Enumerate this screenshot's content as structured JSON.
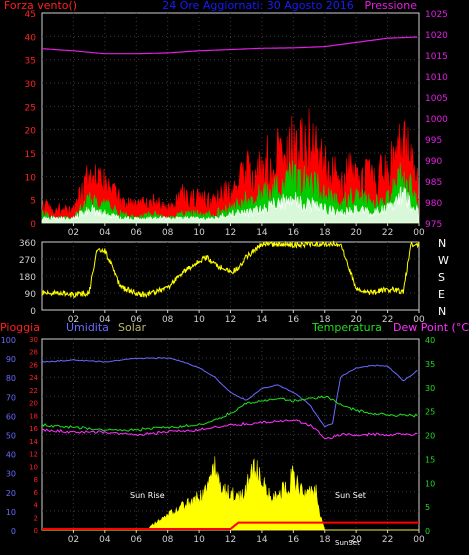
{
  "chart_data": [
    {
      "type": "area",
      "title": "24 Ore Aggiornati: 30 Agosto 2016",
      "left_label": "Forza vento()",
      "right_label": "Pressione",
      "colors": {
        "title": "#1a1aff",
        "left": "#ff2020",
        "right": "#e020e0",
        "gust": "#ff0000",
        "speed": "#00cc00",
        "avg": "#ffffff",
        "pressure": "#e020e0",
        "grid": "#3a3a3a"
      },
      "yleft": [
        0,
        45
      ],
      "yleft_ticks": [
        "0",
        "5",
        "10",
        "15",
        "20",
        "25",
        "30",
        "35",
        "40",
        "45"
      ],
      "yright": [
        975,
        1025
      ],
      "yright_ticks": [
        "975",
        "980",
        "985",
        "990",
        "995",
        "1000",
        "1005",
        "1010",
        "1015",
        "1020",
        "1025"
      ],
      "x_ticks": [
        "02",
        "04",
        "06",
        "08",
        "10",
        "12",
        "14",
        "16",
        "18",
        "20",
        "22",
        "00"
      ],
      "series": [
        {
          "key": "pressure",
          "axis": "right",
          "hours": [
            0,
            2,
            4,
            6,
            8,
            10,
            12,
            14,
            16,
            18,
            20,
            22,
            24
          ],
          "values": [
            1016.5,
            1016,
            1015.3,
            1015.3,
            1015.5,
            1016,
            1016.3,
            1016.6,
            1016.7,
            1017,
            1018,
            1019,
            1019.3
          ]
        },
        {
          "key": "gust",
          "hours": [
            0,
            1,
            2,
            3,
            4,
            5,
            6,
            7,
            8,
            9,
            10,
            11,
            12,
            13,
            14,
            15,
            16,
            17,
            18,
            19,
            20,
            21,
            22,
            23,
            24
          ],
          "values": [
            4,
            3,
            3,
            10,
            8,
            5,
            4,
            5,
            3,
            6,
            5,
            5,
            7,
            11,
            12,
            15,
            16,
            17,
            12,
            9,
            12,
            9,
            11,
            17,
            8
          ]
        },
        {
          "key": "speed",
          "hours": [
            0,
            1,
            2,
            3,
            4,
            5,
            6,
            7,
            8,
            9,
            10,
            11,
            12,
            13,
            14,
            15,
            16,
            17,
            18,
            19,
            20,
            21,
            22,
            23,
            24
          ],
          "values": [
            2,
            1,
            1,
            5,
            4,
            2,
            1,
            2,
            1,
            2,
            2,
            2,
            3,
            5,
            6,
            8,
            10,
            9,
            6,
            4,
            6,
            4,
            5,
            10,
            4
          ]
        },
        {
          "key": "avg",
          "hours": [
            0,
            1,
            2,
            3,
            4,
            5,
            6,
            7,
            8,
            9,
            10,
            11,
            12,
            13,
            14,
            15,
            16,
            17,
            18,
            19,
            20,
            21,
            22,
            23,
            24
          ],
          "values": [
            1,
            1,
            1,
            3,
            2,
            1,
            1,
            1,
            1,
            1,
            1,
            1,
            2,
            2,
            3,
            4,
            5,
            4,
            3,
            2,
            3,
            2,
            3,
            6,
            2
          ]
        }
      ]
    },
    {
      "type": "scatter",
      "right_labels": [
        "N",
        "W",
        "S",
        "E",
        "N"
      ],
      "colors": {
        "dir": "#ffff00"
      },
      "y": [
        0,
        360
      ],
      "y_ticks": [
        "0",
        "90",
        "180",
        "270",
        "360"
      ],
      "x_ticks": [
        "02",
        "04",
        "06",
        "08",
        "10",
        "12",
        "14",
        "16",
        "18",
        "20",
        "22",
        "00"
      ],
      "series": [
        {
          "key": "direction",
          "hours": [
            0,
            1,
            2,
            3,
            3.5,
            4,
            5,
            6,
            6.5,
            7,
            8,
            9,
            10,
            10.5,
            11,
            12,
            12.5,
            13,
            14,
            15,
            16,
            17,
            18,
            19,
            19.5,
            20,
            21,
            22,
            23,
            23.5,
            24
          ],
          "values": [
            90,
            90,
            80,
            90,
            310,
            320,
            120,
            90,
            80,
            90,
            120,
            200,
            260,
            280,
            240,
            200,
            220,
            280,
            350,
            350,
            345,
            350,
            350,
            350,
            230,
            110,
            90,
            110,
            100,
            350,
            350
          ]
        }
      ]
    },
    {
      "type": "line",
      "left_labels": [
        "Pioggia",
        "Umidita",
        "Solar"
      ],
      "right_labels": [
        "Temperatura",
        "Dew Point (°C)"
      ],
      "annotations": [
        "Sun Rise",
        "Sun Set",
        "SunSet"
      ],
      "colors": {
        "rain": "#ff2020",
        "hum": "#6a6aff",
        "solar": "#b8b870",
        "temp": "#20dd20",
        "dew": "#ff30ff",
        "sol": "#ffff00",
        "rainline": "#ff0000",
        "grid": "#3a3a3a"
      },
      "rain_ticks": [
        "0",
        "2",
        "4",
        "6",
        "8",
        "10",
        "12",
        "14",
        "16",
        "18",
        "20",
        "22",
        "24",
        "26",
        "28",
        "30"
      ],
      "hum_ticks": [
        "0",
        "10",
        "20",
        "30",
        "40",
        "50",
        "60",
        "70",
        "80",
        "90",
        "100"
      ],
      "temp_ticks": [
        "0",
        "5",
        "10",
        "15",
        "20",
        "25",
        "30",
        "35",
        "40"
      ],
      "x_ticks": [
        "02",
        "04",
        "06",
        "08",
        "10",
        "12",
        "14",
        "16",
        "18",
        "20",
        "22",
        "00"
      ],
      "series": [
        {
          "key": "humidity",
          "hours": [
            0,
            2,
            4,
            6,
            8,
            9,
            10,
            11,
            12,
            13,
            14,
            15,
            16,
            17,
            17.5,
            18,
            18.5,
            19,
            20,
            21,
            22,
            23,
            24
          ],
          "values": [
            88,
            89,
            88,
            90,
            90,
            88,
            85,
            80,
            72,
            68,
            74,
            76,
            72,
            66,
            60,
            54,
            56,
            80,
            85,
            86,
            86,
            78,
            84
          ]
        },
        {
          "key": "temperature",
          "hours": [
            0,
            2,
            4,
            6,
            8,
            10,
            11,
            12,
            13,
            14,
            15,
            16,
            17,
            18,
            19,
            20,
            21,
            22,
            23,
            24
          ],
          "values": [
            22,
            21.5,
            21,
            21,
            21.5,
            22,
            23,
            24.5,
            26.5,
            27,
            27.5,
            27,
            27.5,
            28,
            26.5,
            25,
            24.5,
            24,
            24,
            24
          ]
        },
        {
          "key": "dewpoint",
          "hours": [
            0,
            2,
            4,
            6,
            8,
            10,
            12,
            14,
            16,
            17,
            17.5,
            18,
            19,
            20,
            22,
            24
          ],
          "values": [
            21,
            20.5,
            20.5,
            20,
            20.5,
            21,
            22,
            22.5,
            23,
            22,
            21,
            19,
            20,
            20,
            20,
            20
          ]
        },
        {
          "key": "solar",
          "hours": [
            0,
            6.7,
            7,
            8,
            9,
            10,
            10.5,
            11,
            11.3,
            12,
            12.5,
            13,
            13.6,
            14,
            14.4,
            15,
            16,
            16.5,
            17,
            17.5,
            17.7,
            18,
            24
          ],
          "values": [
            0,
            0,
            1,
            3,
            5,
            7,
            8.5,
            13,
            9,
            8,
            6.5,
            9,
            13,
            10,
            7.5,
            7,
            11,
            8,
            9,
            7.5,
            3,
            0,
            0
          ]
        },
        {
          "key": "rain",
          "hours": [
            0,
            12,
            12.5,
            24
          ],
          "values": [
            0,
            0,
            1,
            1
          ]
        }
      ]
    }
  ]
}
